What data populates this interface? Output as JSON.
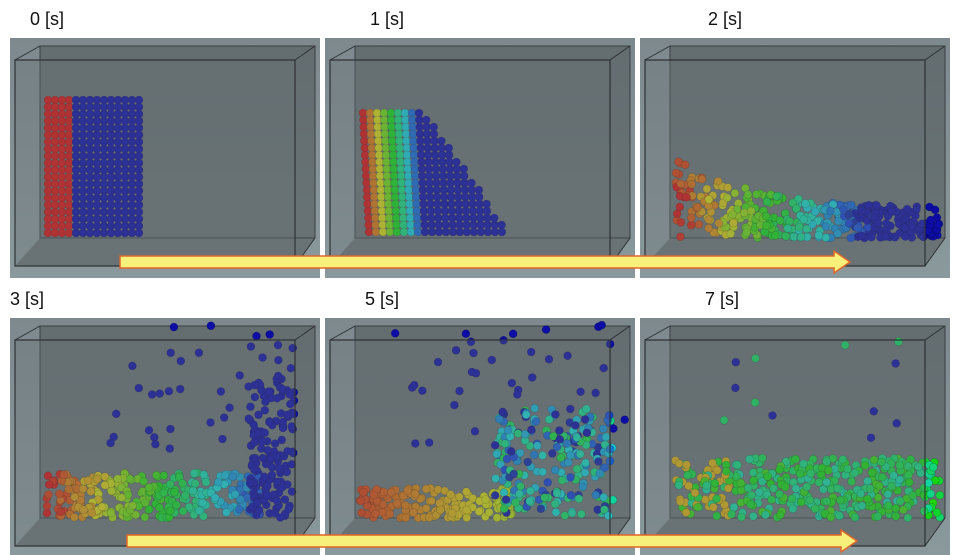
{
  "panels": [
    {
      "label": "0 [s]"
    },
    {
      "label": "1 [s]"
    },
    {
      "label": "2 [s]"
    },
    {
      "label": "3 [s]"
    },
    {
      "label": "5 [s]"
    },
    {
      "label": "7 [s]"
    }
  ]
}
